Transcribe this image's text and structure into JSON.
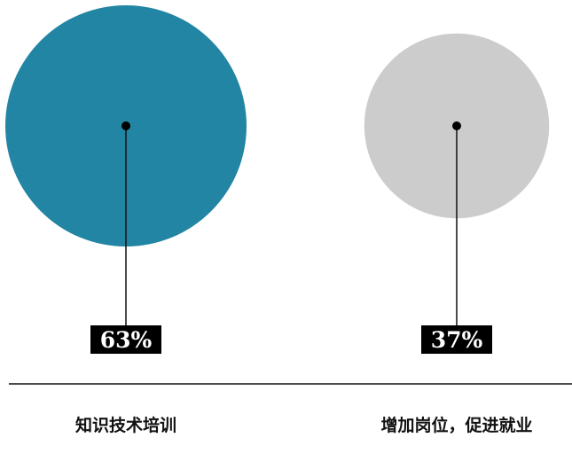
{
  "chart_data": {
    "type": "bubble",
    "categories": [
      "知识技术培训",
      "增加岗位，促进就业"
    ],
    "values": [
      63,
      37
    ],
    "value_labels": [
      "63%",
      "37%"
    ],
    "colors": [
      "#2185a3",
      "#cccccc"
    ],
    "title": "",
    "xlabel": "",
    "ylabel": ""
  }
}
